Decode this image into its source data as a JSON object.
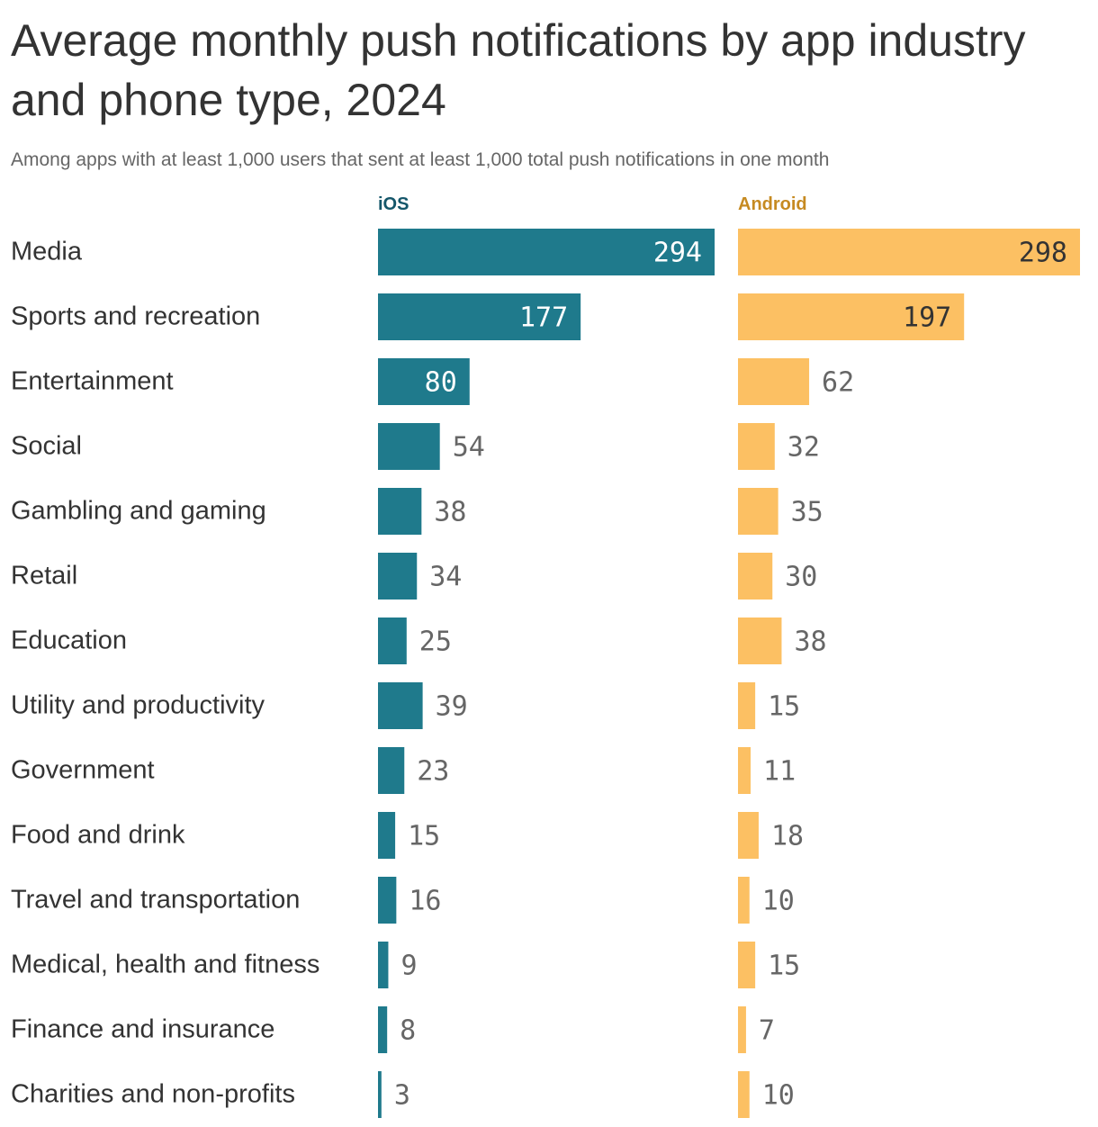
{
  "colors": {
    "ios": "#1f7a8c",
    "android": "#fcc063",
    "ios_header": "#14566a",
    "android_header": "#c68a21",
    "label_inside_ios": "#ffffff",
    "label_inside_android": "#333333",
    "label_outside": "#666666"
  },
  "chart_data": {
    "type": "bar",
    "orientation": "horizontal",
    "title": "Average monthly push notifications by app industry and phone type, 2024",
    "subtitle": "Among apps with at least 1,000 users that sent at least 1,000 total push notifications in one month",
    "categories": [
      "Media",
      "Sports and recreation",
      "Entertainment",
      "Social",
      "Gambling and gaming",
      "Retail",
      "Education",
      "Utility and productivity",
      "Government",
      "Food and drink",
      "Travel and transportation",
      "Medical, health and fitness",
      "Finance and insurance",
      "Charities and non-profits"
    ],
    "series": [
      {
        "name": "iOS",
        "values": [
          294,
          177,
          80,
          54,
          38,
          34,
          25,
          39,
          23,
          15,
          16,
          9,
          8,
          3
        ]
      },
      {
        "name": "Android",
        "values": [
          298,
          197,
          62,
          32,
          35,
          30,
          38,
          15,
          11,
          18,
          10,
          15,
          7,
          10
        ]
      }
    ],
    "legend": "column headers above each panel",
    "grid": false
  }
}
